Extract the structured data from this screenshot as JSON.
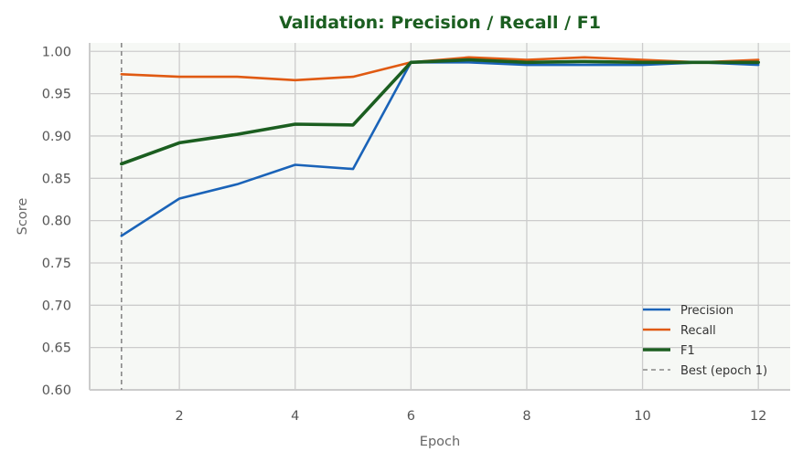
{
  "chart_data": {
    "type": "line",
    "title": "Validation: Precision / Recall / F1",
    "xlabel": "Epoch",
    "ylabel": "Score",
    "xlim": [
      0.45,
      12.55
    ],
    "ylim": [
      0.6,
      1.01
    ],
    "xticks": [
      2,
      4,
      6,
      8,
      10,
      12
    ],
    "yticks": [
      "0.60",
      "0.65",
      "0.70",
      "0.75",
      "0.80",
      "0.85",
      "0.90",
      "0.95",
      "1.00"
    ],
    "grid": true,
    "legend_position": "lower-right",
    "x": [
      1,
      2,
      3,
      4,
      5,
      6,
      7,
      8,
      9,
      10,
      11,
      12
    ],
    "series": [
      {
        "name": "Precision",
        "color": "#1a63b8",
        "values": [
          0.782,
          0.826,
          0.843,
          0.866,
          0.861,
          0.987,
          0.987,
          0.984,
          0.984,
          0.984,
          0.987,
          0.984
        ]
      },
      {
        "name": "Recall",
        "color": "#e05a12",
        "values": [
          0.973,
          0.97,
          0.97,
          0.966,
          0.97,
          0.987,
          0.993,
          0.99,
          0.993,
          0.99,
          0.987,
          0.99
        ]
      },
      {
        "name": "F1",
        "color": "#1b5e20",
        "values": [
          0.867,
          0.892,
          0.902,
          0.914,
          0.913,
          0.987,
          0.99,
          0.987,
          0.988,
          0.987,
          0.987,
          0.987
        ]
      }
    ],
    "best_line": {
      "label": "Best (epoch 1)",
      "x": 1,
      "color": "#888888"
    },
    "colors": {
      "title": "#1b5e20",
      "plot_background": "#f6f8f5",
      "grid": "#cccccc",
      "spine": "#cccccc"
    }
  }
}
